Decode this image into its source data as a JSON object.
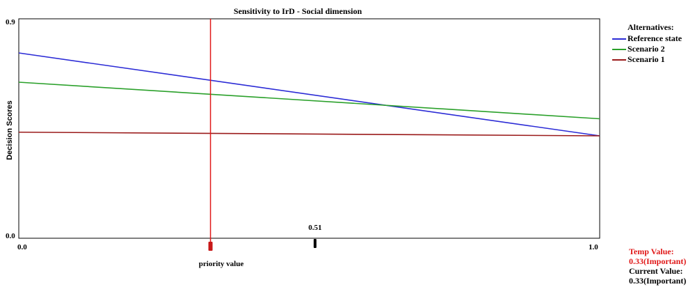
{
  "chart_data": {
    "type": "line",
    "title": "Sensitivity to IrD - Social dimension",
    "xlabel": "priority value",
    "ylabel": "Decision Scores",
    "xlim": [
      0.0,
      1.0
    ],
    "ylim": [
      0.0,
      0.9
    ],
    "x_ticks": [
      "0.0",
      "1.0"
    ],
    "y_ticks": [
      "0.9",
      "0.0"
    ],
    "series": [
      {
        "name": "Reference state",
        "color": "#2b2bd6",
        "x": [
          0.0,
          1.0
        ],
        "values": [
          0.76,
          0.42
        ]
      },
      {
        "name": "Scenario 2",
        "color": "#2aa02a",
        "x": [
          0.0,
          1.0
        ],
        "values": [
          0.64,
          0.49
        ]
      },
      {
        "name": "Scenario 1",
        "color": "#9a1a1a",
        "x": [
          0.0,
          1.0
        ],
        "values": [
          0.435,
          0.42
        ]
      }
    ],
    "current_priority": {
      "value": 0.33,
      "color": "#e01818"
    },
    "marker": {
      "value": 0.51,
      "label": "0.51"
    },
    "grid": false,
    "legend_position": "right"
  },
  "legend": {
    "title": "Alternatives:",
    "items": [
      {
        "label": "Reference state",
        "color": "#2b2bd6"
      },
      {
        "label": "Scenario 2",
        "color": "#2aa02a"
      },
      {
        "label": "Scenario 1",
        "color": "#9a1a1a"
      }
    ]
  },
  "status": {
    "temp_label": "Temp Value:",
    "temp_value": "0.33(Important)",
    "current_label": "Current Value:",
    "current_value": "0.33(Important)"
  }
}
